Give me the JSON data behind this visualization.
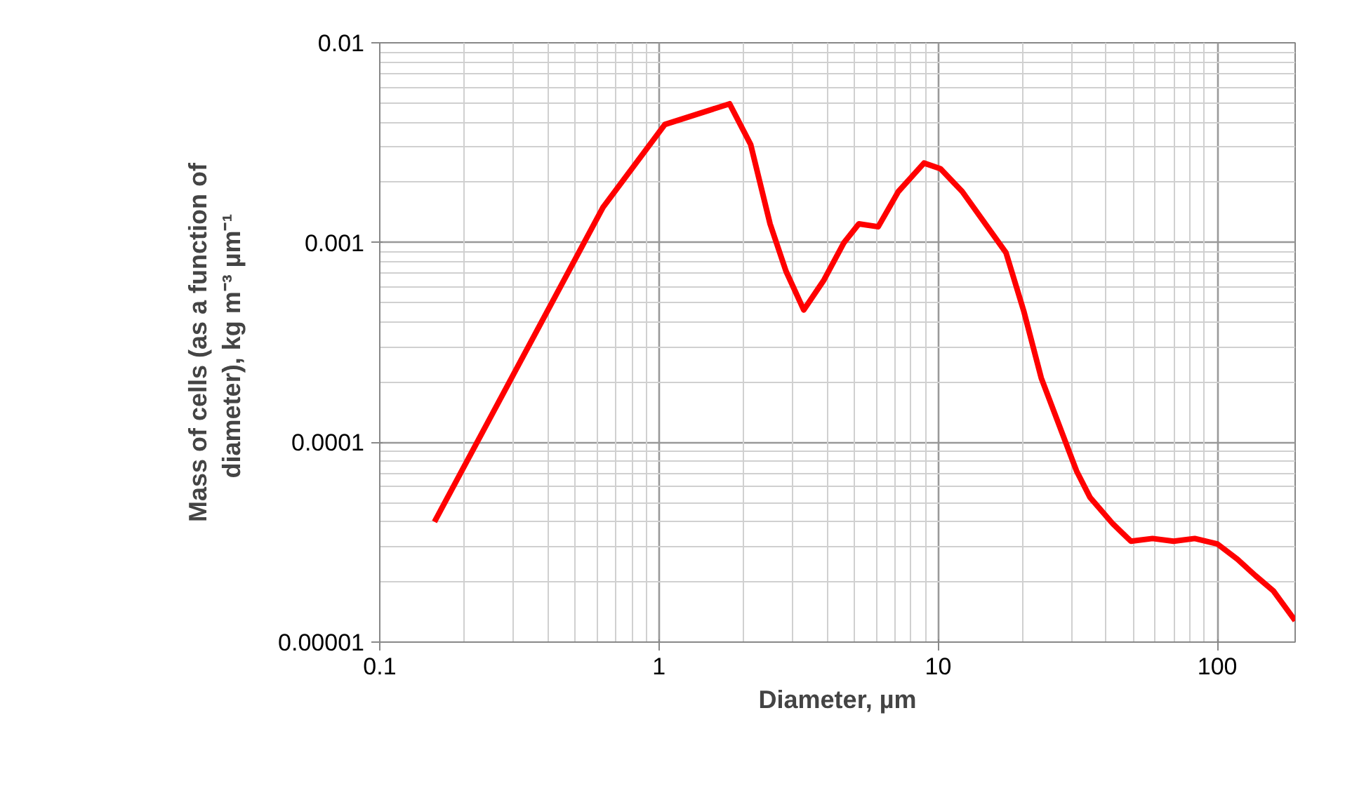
{
  "chart_data": {
    "type": "line",
    "xlabel": "Diameter, µm",
    "ylabel": "Mass of cells (as a function of diameter), kg  m⁻³ µm⁻¹",
    "log": "xy",
    "grid": true,
    "marker": "none",
    "line_style": "solid",
    "xlim": [
      0.1,
      190
    ],
    "ylim": [
      1e-05,
      0.01
    ],
    "xticks": [
      {
        "value": 0.1,
        "label": "0.1"
      },
      {
        "value": 1,
        "label": "1"
      },
      {
        "value": 10,
        "label": "10"
      },
      {
        "value": 100,
        "label": "100"
      }
    ],
    "yticks": [
      {
        "value": 1e-05,
        "label": "0.00001"
      },
      {
        "value": 0.0001,
        "label": "0.0001"
      },
      {
        "value": 0.001,
        "label": "0.001"
      },
      {
        "value": 0.01,
        "label": "0.01"
      }
    ],
    "series": [
      {
        "color": "#ff0000",
        "x": [
          0.157,
          0.63,
          1.05,
          1.79,
          2.13,
          2.5,
          2.85,
          3.3,
          3.9,
          4.6,
          5.2,
          6.1,
          7.2,
          8.9,
          10.2,
          12.2,
          17.5,
          20.3,
          23.4,
          31.3,
          35,
          42.3,
          49,
          58.6,
          69.7,
          83,
          100,
          118,
          137,
          159,
          190
        ],
        "values": [
          4e-05,
          0.0015,
          0.0039,
          0.00495,
          0.0031,
          0.00124,
          0.00072,
          0.00046,
          0.00065,
          0.001,
          0.00124,
          0.0012,
          0.0018,
          0.0025,
          0.00234,
          0.0018,
          0.00089,
          0.00045,
          0.00021,
          7.2e-05,
          5.3e-05,
          3.9e-05,
          3.2e-05,
          3.3e-05,
          3.2e-05,
          3.3e-05,
          3.1e-05,
          2.6e-05,
          2.15e-05,
          1.8e-05,
          1.28e-05
        ]
      }
    ]
  }
}
